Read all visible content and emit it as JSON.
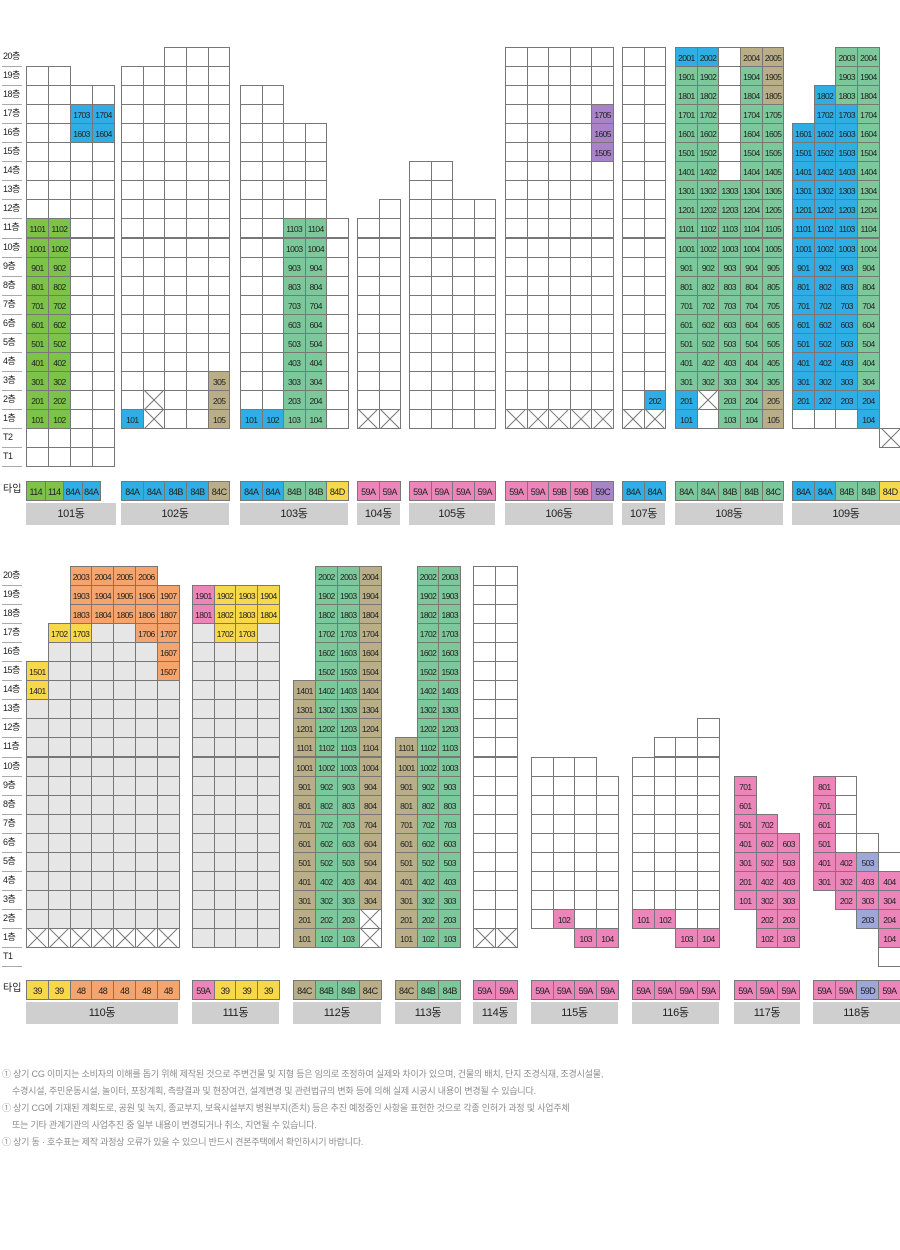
{
  "floor_labels": [
    "20층",
    "19층",
    "18층",
    "17층",
    "16층",
    "15층",
    "14층",
    "13층",
    "12층",
    "11층",
    "10층",
    "9층",
    "8층",
    "7층",
    "6층",
    "5층",
    "4층",
    "3층",
    "2층",
    "1층",
    "T2",
    "T1"
  ],
  "type_row_label": "타입",
  "floors_bottom": [
    "20층",
    "19층",
    "18층",
    "17층",
    "16층",
    "15층",
    "14층",
    "13층",
    "12층",
    "11층",
    "10층",
    "9층",
    "8층",
    "7층",
    "6층",
    "5층",
    "4층",
    "3층",
    "2층",
    "1층",
    "T1"
  ],
  "colors": {
    "green": "#7dc249",
    "blue": "#2eaee4",
    "teal": "#7dc89a",
    "khaki": "#b9ae88",
    "purple": "#a883c8",
    "pink": "#ec86ba",
    "orange": "#f4a46c",
    "yellow": "#f7d84a",
    "lavender": "#9ea8d8",
    "grey": "#e6e6e6",
    "white": "#ffffff"
  },
  "buildings": [
    {
      "name": "101동",
      "floors": [
        "1101 1102 . .",
        "1001 1002 . .",
        "901 902 . .",
        "801 802 . .",
        "701 702 . .",
        "601 602 . .",
        "501 502 . .",
        "401 402 . .",
        "301 302 . .",
        "201 202 . .",
        "101 102 . ."
      ],
      "types": [
        "114",
        "114",
        "84A",
        "84A"
      ]
    },
    {
      "name": "102동",
      "types": [
        "84A",
        "84A",
        "84B",
        "84B",
        "84C"
      ]
    },
    {
      "name": "103동",
      "types": [
        "84A",
        "84A",
        "84B",
        "84B",
        "84D"
      ]
    },
    {
      "name": "104동",
      "types": [
        "59A",
        "59A"
      ]
    },
    {
      "name": "105동",
      "types": [
        "59A",
        "59A",
        "59A",
        "59A"
      ]
    },
    {
      "name": "106동",
      "types": [
        "59A",
        "59A",
        "59B",
        "59B",
        "59C"
      ]
    },
    {
      "name": "107동",
      "types": [
        "84A",
        "84A"
      ]
    },
    {
      "name": "108동",
      "types": [
        "84A",
        "84A",
        "84B",
        "84B",
        "84C"
      ]
    },
    {
      "name": "109동",
      "types": [
        "84A",
        "84A",
        "84B",
        "84B",
        "84D"
      ]
    },
    {
      "name": "110동",
      "types": [
        "39",
        "39",
        "48",
        "48",
        "48",
        "48",
        "48"
      ]
    },
    {
      "name": "111동",
      "types": [
        "59A",
        "39",
        "39",
        "39"
      ]
    },
    {
      "name": "112동",
      "types": [
        "84C",
        "84B",
        "84B",
        "84C"
      ]
    },
    {
      "name": "113동",
      "types": [
        "84C",
        "84B",
        "84B"
      ]
    },
    {
      "name": "114동",
      "types": [
        "59A",
        "59A"
      ]
    },
    {
      "name": "115동",
      "types": [
        "59A",
        "59A",
        "59A",
        "59A"
      ]
    },
    {
      "name": "116동",
      "types": [
        "59A",
        "59A",
        "59A",
        "59A"
      ]
    },
    {
      "name": "117동",
      "types": [
        "59A",
        "59A",
        "59A"
      ]
    },
    {
      "name": "118동",
      "types": [
        "59A",
        "59A",
        "59D",
        "59A"
      ]
    }
  ],
  "notes": [
    "① 상기 CG 이미지는 소비자의 이해를 돕기 위해 제작된 것으로 주변건물 및 지형 등은 임의로 조정하여 실제와 차이가 있으며, 건물의 배치, 단지 조경식재, 조경시설물,",
    "수경시설, 주민운동시설, 놀이터, 포장계획, 측량결과 및 현장여건, 설계변경 및 관련법규의 변화 등에 의해 실제 시공시 내용이 변경될 수 있습니다.",
    "① 상기 CG에 기재된 계획도로, 공원 및 녹지, 종교부지, 보육시설부지 병원부지(존치) 등은 추진 예정중인 사항을 표현한 것으로 각종 인허가 과정 및 사업주체",
    "또는 기타 관계기관의 사업추진 중 일부 내용이 변경되거나 취소, 지연될 수 있습니다.",
    "① 상기 동 · 호수표는 제작 과정상 오류가 있을 수 있으니 반드시 견본주택에서 확인하시기 바랍니다."
  ]
}
